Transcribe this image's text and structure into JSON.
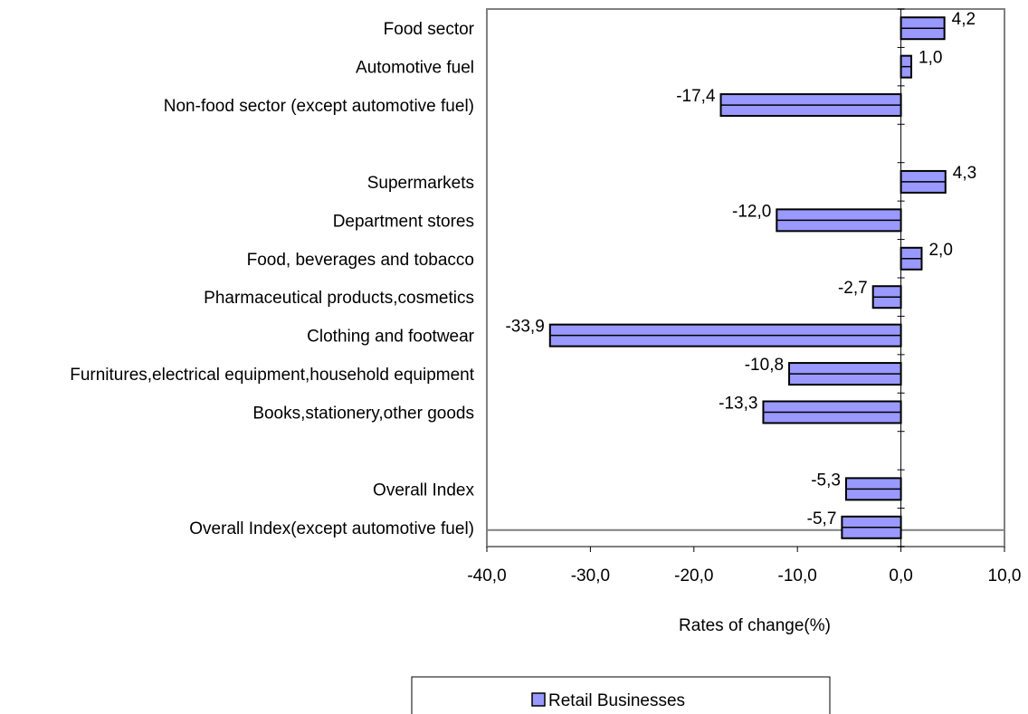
{
  "chart_data": {
    "type": "bar",
    "orientation": "horizontal",
    "categories": [
      "Food sector",
      "Automotive fuel",
      "Non-food sector (except automotive fuel)",
      "",
      "Supermarkets",
      "Department stores",
      "Food, beverages and tobacco",
      "Pharmaceutical products,cosmetics",
      "Clothing and footwear",
      "Furnitures,electrical equipment,household equipment",
      "Books,stationery,other goods",
      "",
      "Overall Index",
      "Overall Index(except automotive fuel)"
    ],
    "series": [
      {
        "name": "Retail Businesses",
        "values": [
          4.2,
          1.0,
          -17.4,
          null,
          4.3,
          -12.0,
          2.0,
          -2.7,
          -33.9,
          -10.8,
          -13.3,
          null,
          -5.3,
          -5.7
        ],
        "value_labels": [
          "4,2",
          "1,0",
          "-17,4",
          "",
          "4,3",
          "-12,0",
          "2,0",
          "-2,7",
          "-33,9",
          "-10,8",
          "-13,3",
          "",
          "-5,3",
          "-5,7"
        ],
        "color": "#9999ff"
      }
    ],
    "xlabel": "Rates of change(%)",
    "ylabel": "",
    "xlim": [
      -40,
      10
    ],
    "xticks": [
      -40,
      -30,
      -20,
      -10,
      0,
      10
    ],
    "xtick_labels": [
      "-40,0",
      "-30,0",
      "-20,0",
      "-10,0",
      "0,0",
      "10,0"
    ],
    "grid": false,
    "legend": {
      "position": "bottom",
      "entries": [
        "Retail Businesses"
      ]
    },
    "colors": {
      "bar_fill": "#9999ff",
      "bar_stroke": "#000000",
      "frame": "#808080"
    }
  }
}
